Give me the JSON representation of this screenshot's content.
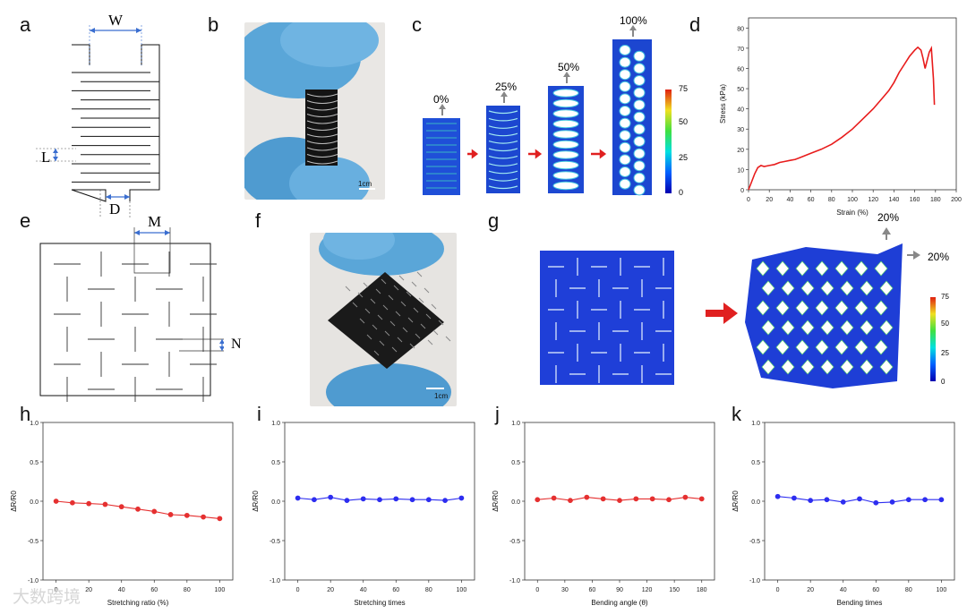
{
  "panel_labels": {
    "a": "a",
    "b": "b",
    "c": "c",
    "d": "d",
    "e": "e",
    "f": "f",
    "g": "g",
    "h": "h",
    "i": "i",
    "j": "j",
    "k": "k"
  },
  "diagram_a": {
    "w": "W",
    "l": "L",
    "d": "D"
  },
  "diagram_e": {
    "m": "M",
    "n": "N"
  },
  "photo_b": {
    "scale": "1cm"
  },
  "photo_f": {
    "scale": "1cm"
  },
  "panel_c": {
    "strains": [
      "0%",
      "25%",
      "50%",
      "100%"
    ],
    "colorbar_ticks": [
      "75",
      "50",
      "25",
      "0"
    ]
  },
  "panel_g": {
    "strain_top": "20%",
    "strain_right": "20%",
    "colorbar_ticks": [
      "75",
      "50",
      "25",
      "0"
    ]
  },
  "colors": {
    "red_series": "#e53030",
    "blue_series": "#2d2df0",
    "fem_blue": "#1538c8",
    "glove": "#5aa6d8",
    "arrow": "#e02020"
  },
  "watermark": "大数跨境",
  "chart_data": [
    {
      "panel": "d",
      "type": "line",
      "xlabel": "Strain (%)",
      "ylabel": "Stress (kPa)",
      "xlim": [
        0,
        200
      ],
      "ylim": [
        0,
        85
      ],
      "xticks": [
        0,
        20,
        40,
        60,
        80,
        100,
        120,
        140,
        160,
        180,
        200
      ],
      "yticks": [
        0,
        10,
        20,
        30,
        40,
        50,
        60,
        70,
        80
      ],
      "series": [
        {
          "x": [
            0,
            3,
            6,
            9,
            12,
            15,
            20,
            25,
            30,
            35,
            40,
            45,
            50,
            60,
            70,
            80,
            90,
            100,
            110,
            120,
            130,
            135,
            140,
            145,
            150,
            155,
            160,
            163,
            166,
            168,
            170,
            172,
            174,
            176,
            178,
            179
          ],
          "y": [
            0,
            4,
            8,
            11,
            12,
            11.5,
            12,
            12.5,
            13.5,
            14,
            14.5,
            15,
            16,
            18,
            20,
            22.5,
            26,
            30,
            35,
            40,
            46,
            49,
            53,
            58,
            62,
            66,
            69,
            70.5,
            69,
            65,
            60,
            64,
            68,
            70,
            55,
            42
          ]
        }
      ]
    },
    {
      "panel": "h",
      "type": "line",
      "xlabel": "Stretching ratio (%)",
      "ylabel": "ΔR/R0",
      "xlim": [
        -8,
        108
      ],
      "ylim": [
        -1.0,
        1.0
      ],
      "xticks": [
        0,
        20,
        40,
        60,
        80,
        100
      ],
      "yticks": [
        "1.0",
        "0.5",
        "0.0",
        "-0.5",
        "-1.0"
      ],
      "series": [
        {
          "x": [
            0,
            10,
            20,
            30,
            40,
            50,
            60,
            70,
            80,
            90,
            100
          ],
          "y": [
            0.0,
            -0.02,
            -0.03,
            -0.04,
            -0.07,
            -0.1,
            -0.13,
            -0.17,
            -0.18,
            -0.2,
            -0.22
          ]
        }
      ]
    },
    {
      "panel": "i",
      "type": "line",
      "xlabel": "Stretching times",
      "ylabel": "ΔR/R0",
      "xlim": [
        -8,
        108
      ],
      "ylim": [
        -1.0,
        1.0
      ],
      "xticks": [
        0,
        20,
        40,
        60,
        80,
        100
      ],
      "yticks": [
        "1.0",
        "0.5",
        "0.0",
        "-0.5",
        "-1.0"
      ],
      "series": [
        {
          "x": [
            0,
            10,
            20,
            30,
            40,
            50,
            60,
            70,
            80,
            90,
            100
          ],
          "y": [
            0.04,
            0.02,
            0.05,
            0.01,
            0.03,
            0.02,
            0.03,
            0.02,
            0.02,
            0.01,
            0.04
          ]
        }
      ]
    },
    {
      "panel": "j",
      "type": "line",
      "xlabel": "Bending angle (θ)",
      "ylabel": "ΔR/R0",
      "xlim": [
        -14,
        194
      ],
      "ylim": [
        -1.0,
        1.0
      ],
      "xticks": [
        0,
        30,
        60,
        90,
        120,
        150,
        180
      ],
      "yticks": [
        "1.0",
        "0.5",
        "0.0",
        "-0.5",
        "-1.0"
      ],
      "series": [
        {
          "x": [
            0,
            18,
            36,
            54,
            72,
            90,
            108,
            126,
            144,
            162,
            180
          ],
          "y": [
            0.02,
            0.04,
            0.01,
            0.05,
            0.03,
            0.01,
            0.03,
            0.03,
            0.02,
            0.05,
            0.03
          ]
        }
      ]
    },
    {
      "panel": "k",
      "type": "line",
      "xlabel": "Bending times",
      "ylabel": "ΔR/R0",
      "xlim": [
        -8,
        108
      ],
      "ylim": [
        -1.0,
        1.0
      ],
      "xticks": [
        0,
        20,
        40,
        60,
        80,
        100
      ],
      "yticks": [
        "1.0",
        "0.5",
        "0.0",
        "-0.5",
        "-1.0"
      ],
      "series": [
        {
          "x": [
            0,
            10,
            20,
            30,
            40,
            50,
            60,
            70,
            80,
            90,
            100
          ],
          "y": [
            0.06,
            0.04,
            0.01,
            0.02,
            -0.01,
            0.03,
            -0.02,
            -0.01,
            0.02,
            0.02,
            0.02
          ]
        }
      ]
    }
  ]
}
